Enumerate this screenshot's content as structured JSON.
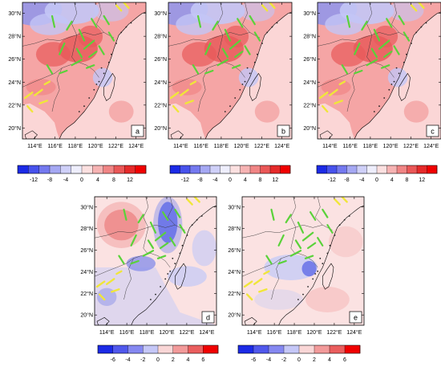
{
  "figure": {
    "panels": [
      {
        "id": "a",
        "label": "a",
        "scale": "top",
        "pattern": "warm"
      },
      {
        "id": "b",
        "label": "b",
        "scale": "top",
        "pattern": "warm"
      },
      {
        "id": "c",
        "label": "c",
        "scale": "top",
        "pattern": "warm"
      },
      {
        "id": "d",
        "label": "d",
        "scale": "bottom",
        "pattern": "diffD"
      },
      {
        "id": "e",
        "label": "e",
        "scale": "bottom",
        "pattern": "diffE"
      }
    ],
    "lat_labels": [
      "30°N",
      "28°N",
      "26°N",
      "24°N",
      "22°N",
      "20°N"
    ],
    "lon_labels": [
      "114°E",
      "116°E",
      "118°E",
      "120°E",
      "122°E",
      "124°E"
    ],
    "colorbar_top": {
      "labels": [
        "-12",
        "-8",
        "-4",
        "0",
        "4",
        "8",
        "12"
      ],
      "colors": [
        "#1b2ae6",
        "#4752ec",
        "#7479ef",
        "#a5a8f3",
        "#cfd0f8",
        "#eeeefc",
        "#fbe0e0",
        "#f6b3b3",
        "#f08585",
        "#ea5757",
        "#e52a2a",
        "#f00000"
      ]
    },
    "colorbar_bottom": {
      "labels": [
        "-6",
        "-4",
        "-2",
        "0",
        "2",
        "4",
        "6"
      ],
      "colors": [
        "#1b2ae6",
        "#5058ec",
        "#8588f1",
        "#c5c7f7",
        "#f9d6d6",
        "#f29a9a",
        "#ea5e5e",
        "#f00000"
      ]
    },
    "colors": {
      "sea_warm": "#fbd6d6",
      "land_warm": "#f4a0a0",
      "hot": "#e85a5a",
      "cold": "#8e95ec",
      "cold_light": "#c3c6f6",
      "sea_diff": "#fbe2e2",
      "diff_neg": "#c9ccf5",
      "station_green": "#5ad23a",
      "station_yellow": "#f0e63a",
      "outline": "#000000"
    }
  }
}
